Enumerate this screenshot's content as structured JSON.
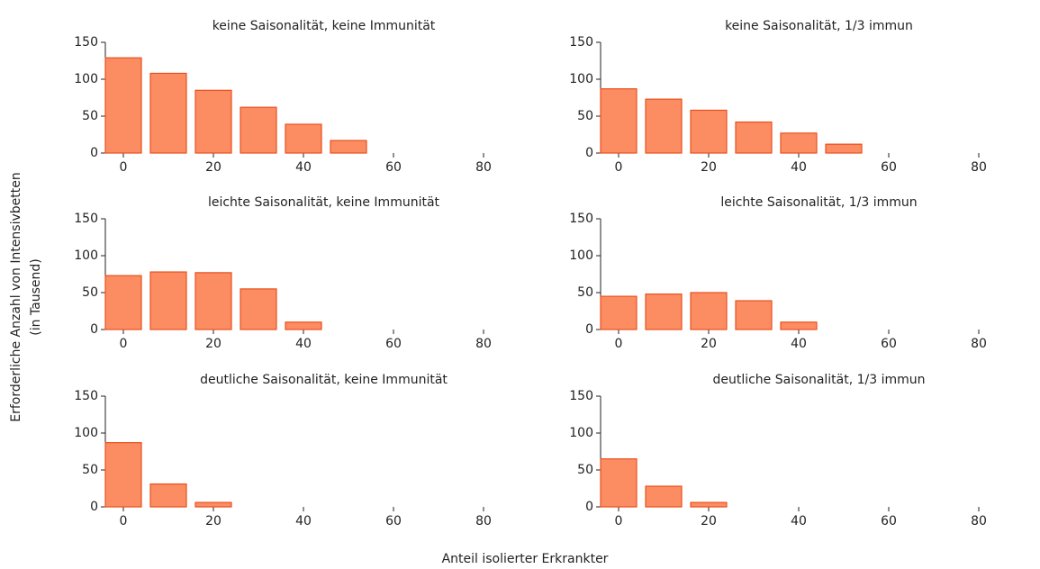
{
  "figure": {
    "xlabel": "Anteil isolierter Erkrankter",
    "ylabel": [
      "Erforderliche Anzahl von Intensivbetten",
      "(in Tausend)"
    ]
  },
  "chart_data": [
    {
      "type": "bar",
      "title": "keine Saisonalität, keine Immunität",
      "x": [
        0,
        10,
        20,
        30,
        40,
        50,
        60,
        70,
        80,
        90
      ],
      "values": [
        129,
        108,
        85,
        62,
        39,
        17,
        0,
        0,
        0,
        0
      ],
      "color": "#fc8d62",
      "edgecolor": "#e8501e",
      "xlim": [
        -4,
        93
      ],
      "ylim": [
        0,
        150
      ],
      "xticks": [
        0,
        20,
        40,
        60,
        80
      ],
      "yticks": [
        0,
        50,
        100,
        150
      ]
    },
    {
      "type": "bar",
      "title": "keine Saisonalität, 1/3 immun",
      "x": [
        0,
        10,
        20,
        30,
        40,
        50,
        60,
        70,
        80,
        90
      ],
      "values": [
        87,
        73,
        58,
        42,
        27,
        12,
        0,
        0,
        0,
        0
      ],
      "color": "#fc8d62",
      "edgecolor": "#e8501e",
      "xlim": [
        -4,
        93
      ],
      "ylim": [
        0,
        150
      ],
      "xticks": [
        0,
        20,
        40,
        60,
        80
      ],
      "yticks": [
        0,
        50,
        100,
        150
      ]
    },
    {
      "type": "bar",
      "title": "leichte Saisonalität, keine Immunität",
      "x": [
        0,
        10,
        20,
        30,
        40,
        50,
        60,
        70,
        80,
        90
      ],
      "values": [
        73,
        78,
        77,
        55,
        10,
        0,
        0,
        0,
        0,
        0
      ],
      "color": "#fc8d62",
      "edgecolor": "#e8501e",
      "xlim": [
        -4,
        93
      ],
      "ylim": [
        0,
        150
      ],
      "xticks": [
        0,
        20,
        40,
        60,
        80
      ],
      "yticks": [
        0,
        50,
        100,
        150
      ]
    },
    {
      "type": "bar",
      "title": "leichte Saisonalität, 1/3 immun",
      "x": [
        0,
        10,
        20,
        30,
        40,
        50,
        60,
        70,
        80,
        90
      ],
      "values": [
        45,
        48,
        50,
        39,
        10,
        0,
        0,
        0,
        0,
        0
      ],
      "color": "#fc8d62",
      "edgecolor": "#e8501e",
      "xlim": [
        -4,
        93
      ],
      "ylim": [
        0,
        150
      ],
      "xticks": [
        0,
        20,
        40,
        60,
        80
      ],
      "yticks": [
        0,
        50,
        100,
        150
      ]
    },
    {
      "type": "bar",
      "title": "deutliche Saisonalität, keine Immunität",
      "x": [
        0,
        10,
        20,
        30,
        40,
        50,
        60,
        70,
        80,
        90
      ],
      "values": [
        87,
        31,
        6,
        0,
        0,
        0,
        0,
        0,
        0,
        0
      ],
      "color": "#fc8d62",
      "edgecolor": "#e8501e",
      "xlim": [
        -4,
        93
      ],
      "ylim": [
        0,
        150
      ],
      "xticks": [
        0,
        20,
        40,
        60,
        80
      ],
      "yticks": [
        0,
        50,
        100,
        150
      ]
    },
    {
      "type": "bar",
      "title": "deutliche Saisonalität, 1/3 immun",
      "x": [
        0,
        10,
        20,
        30,
        40,
        50,
        60,
        70,
        80,
        90
      ],
      "values": [
        65,
        28,
        6,
        0,
        0,
        0,
        0,
        0,
        0,
        0
      ],
      "color": "#fc8d62",
      "edgecolor": "#e8501e",
      "xlim": [
        -4,
        93
      ],
      "ylim": [
        0,
        150
      ],
      "xticks": [
        0,
        20,
        40,
        60,
        80
      ],
      "yticks": [
        0,
        50,
        100,
        150
      ]
    }
  ]
}
